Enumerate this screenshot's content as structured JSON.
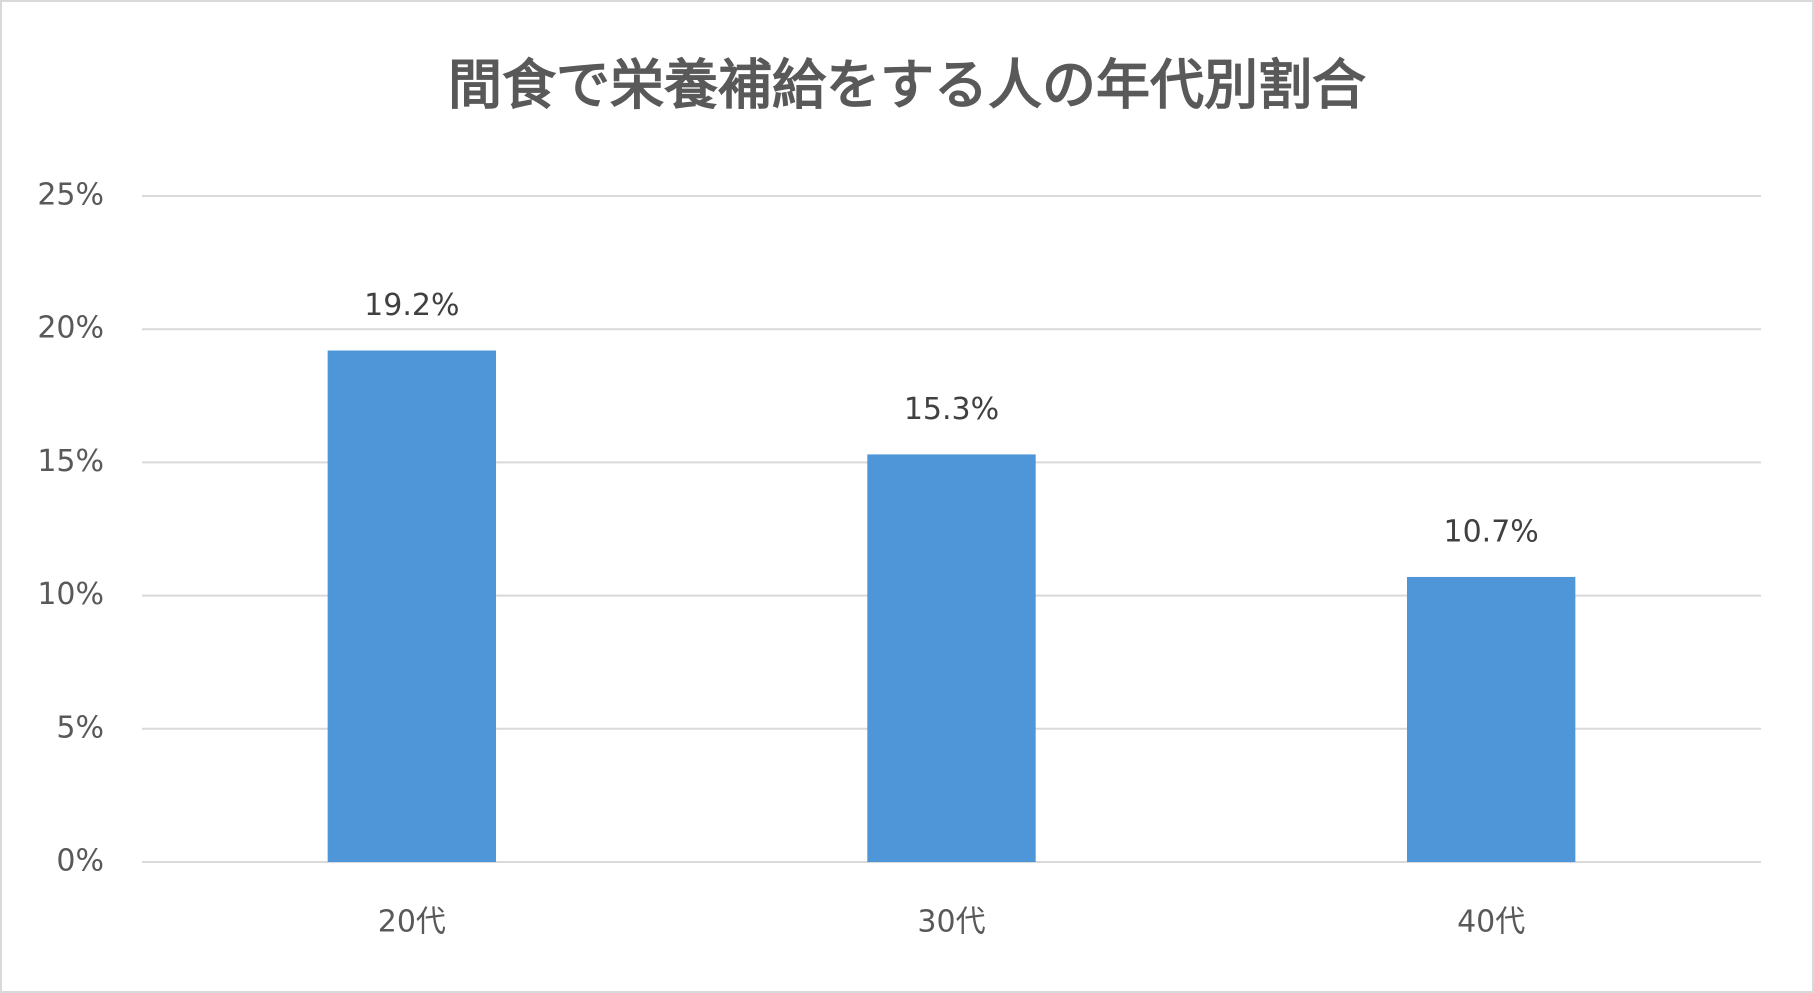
{
  "chart_data": {
    "type": "bar",
    "title": "間食で栄養補給をする人の年代別割合",
    "categories": [
      "20代",
      "30代",
      "40代"
    ],
    "values": [
      19.2,
      15.3,
      10.7
    ],
    "value_labels": [
      "19.2%",
      "15.3%",
      "10.7%"
    ],
    "color": "#4f96d9",
    "ylim": [
      0,
      25
    ],
    "yticks": [
      {
        "value": 0,
        "label": "0%"
      },
      {
        "value": 5,
        "label": "5%"
      },
      {
        "value": 10,
        "label": "10%"
      },
      {
        "value": 15,
        "label": "15%"
      },
      {
        "value": 20,
        "label": "20%"
      },
      {
        "value": 25,
        "label": "25%"
      }
    ],
    "grid": true
  }
}
